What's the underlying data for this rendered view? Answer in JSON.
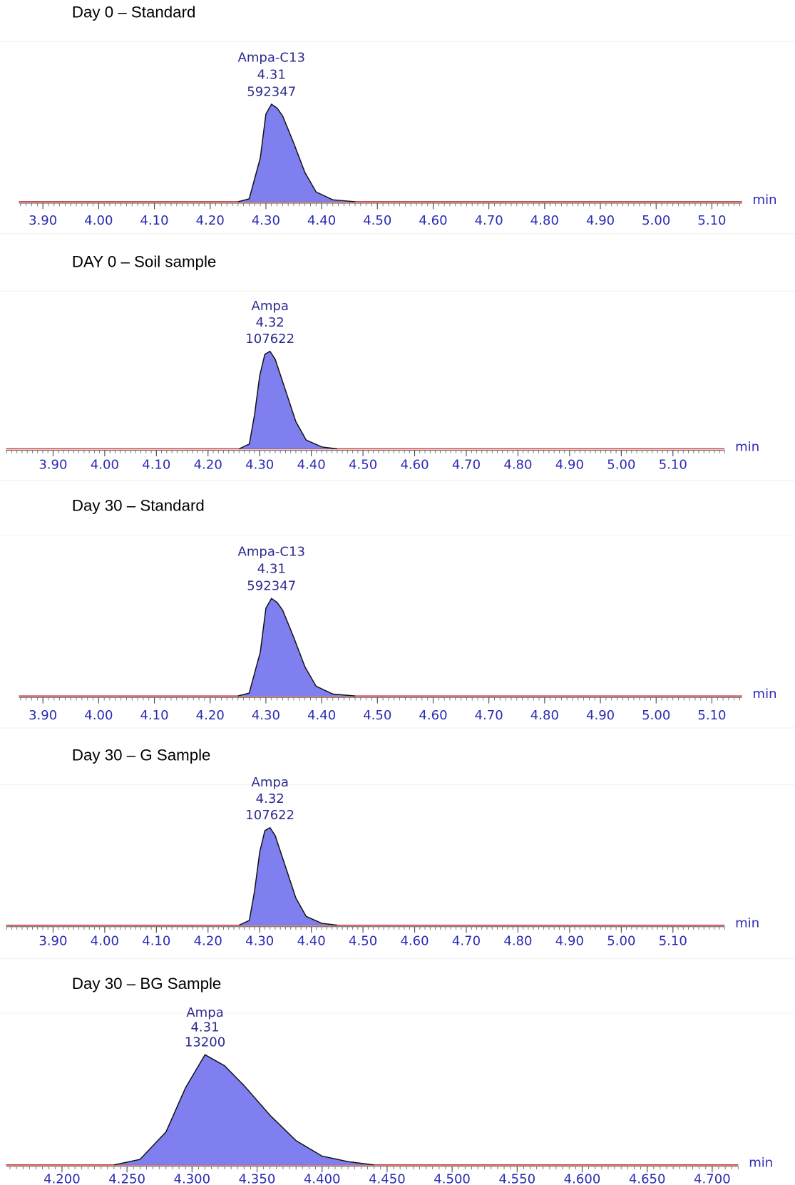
{
  "chart_data": [
    {
      "type": "chromatogram",
      "title": "Day 0 – Standard",
      "peak": {
        "name": "Ampa-C13",
        "rt": 4.31,
        "area": 592347
      },
      "x": [
        4.25,
        4.27,
        4.29,
        4.3,
        4.31,
        4.32,
        4.33,
        4.35,
        4.37,
        4.39,
        4.42,
        4.46
      ],
      "values": [
        0,
        3,
        45,
        90,
        100,
        96,
        88,
        60,
        30,
        10,
        2,
        0
      ],
      "color": "#7f7ff0",
      "x_unit": "min",
      "xlim": [
        3.857,
        5.154
      ],
      "xticks": [
        {
          "value": 3.9,
          "label": "3.90"
        },
        {
          "value": 4,
          "label": "4.00"
        },
        {
          "value": 4.1,
          "label": "4.10"
        },
        {
          "value": 4.2,
          "label": "4.20"
        },
        {
          "value": 4.3,
          "label": "4.30"
        },
        {
          "value": 4.4,
          "label": "4.40"
        },
        {
          "value": 4.5,
          "label": "4.50"
        },
        {
          "value": 4.6,
          "label": "4.60"
        },
        {
          "value": 4.7,
          "label": "4.70"
        },
        {
          "value": 4.8,
          "label": "4.80"
        },
        {
          "value": 4.9,
          "label": "4.90"
        },
        {
          "value": 5,
          "label": "5.00"
        },
        {
          "value": 5.1,
          "label": "5.10"
        }
      ]
    },
    {
      "type": "chromatogram",
      "title": "DAY 0 – Soil sample",
      "peak": {
        "name": "Ampa",
        "rt": 4.32,
        "area": 107622
      },
      "x": [
        4.26,
        4.28,
        4.29,
        4.3,
        4.31,
        4.32,
        4.33,
        4.35,
        4.37,
        4.39,
        4.42,
        4.45
      ],
      "values": [
        0,
        5,
        35,
        75,
        97,
        100,
        92,
        60,
        28,
        9,
        2,
        0
      ],
      "color": "#7f7ff0",
      "x_unit": "min",
      "xlim": [
        3.809,
        5.2
      ],
      "xticks": [
        {
          "value": 3.9,
          "label": "3.90"
        },
        {
          "value": 4,
          "label": "4.00"
        },
        {
          "value": 4.1,
          "label": "4.10"
        },
        {
          "value": 4.2,
          "label": "4.20"
        },
        {
          "value": 4.3,
          "label": "4.30"
        },
        {
          "value": 4.4,
          "label": "4.40"
        },
        {
          "value": 4.5,
          "label": "4.50"
        },
        {
          "value": 4.6,
          "label": "4.60"
        },
        {
          "value": 4.7,
          "label": "4.70"
        },
        {
          "value": 4.8,
          "label": "4.80"
        },
        {
          "value": 4.9,
          "label": "4.90"
        },
        {
          "value": 5,
          "label": "5.00"
        },
        {
          "value": 5.1,
          "label": "5.10"
        }
      ]
    },
    {
      "type": "chromatogram",
      "title": "Day 30 – Standard",
      "peak": {
        "name": "Ampa-C13",
        "rt": 4.31,
        "area": 592347
      },
      "x": [
        4.25,
        4.27,
        4.29,
        4.3,
        4.31,
        4.32,
        4.33,
        4.35,
        4.37,
        4.39,
        4.42,
        4.46
      ],
      "values": [
        0,
        3,
        45,
        90,
        100,
        96,
        88,
        60,
        30,
        10,
        2,
        0
      ],
      "color": "#7f7ff0",
      "x_unit": "min",
      "xlim": [
        3.857,
        5.154
      ],
      "xticks": [
        {
          "value": 3.9,
          "label": "3.90"
        },
        {
          "value": 4,
          "label": "4.00"
        },
        {
          "value": 4.1,
          "label": "4.10"
        },
        {
          "value": 4.2,
          "label": "4.20"
        },
        {
          "value": 4.3,
          "label": "4.30"
        },
        {
          "value": 4.4,
          "label": "4.40"
        },
        {
          "value": 4.5,
          "label": "4.50"
        },
        {
          "value": 4.6,
          "label": "4.60"
        },
        {
          "value": 4.7,
          "label": "4.70"
        },
        {
          "value": 4.8,
          "label": "4.80"
        },
        {
          "value": 4.9,
          "label": "4.90"
        },
        {
          "value": 5,
          "label": "5.00"
        },
        {
          "value": 5.1,
          "label": "5.10"
        }
      ]
    },
    {
      "type": "chromatogram",
      "title": "Day 30 – G Sample",
      "peak": {
        "name": "Ampa",
        "rt": 4.32,
        "area": 107622
      },
      "x": [
        4.26,
        4.28,
        4.29,
        4.3,
        4.31,
        4.32,
        4.33,
        4.35,
        4.37,
        4.39,
        4.42,
        4.45
      ],
      "values": [
        0,
        5,
        35,
        75,
        97,
        100,
        92,
        60,
        28,
        9,
        2,
        0
      ],
      "color": "#7f7ff0",
      "x_unit": "min",
      "xlim": [
        3.809,
        5.2
      ],
      "xticks": [
        {
          "value": 3.9,
          "label": "3.90"
        },
        {
          "value": 4,
          "label": "4.00"
        },
        {
          "value": 4.1,
          "label": "4.10"
        },
        {
          "value": 4.2,
          "label": "4.20"
        },
        {
          "value": 4.3,
          "label": "4.30"
        },
        {
          "value": 4.4,
          "label": "4.40"
        },
        {
          "value": 4.5,
          "label": "4.50"
        },
        {
          "value": 4.6,
          "label": "4.60"
        },
        {
          "value": 4.7,
          "label": "4.70"
        },
        {
          "value": 4.8,
          "label": "4.80"
        },
        {
          "value": 4.9,
          "label": "4.90"
        },
        {
          "value": 5,
          "label": "5.00"
        },
        {
          "value": 5.1,
          "label": "5.10"
        }
      ]
    },
    {
      "type": "chromatogram",
      "title": "Day 30 – BG Sample",
      "peak": {
        "name": "Ampa",
        "rt": 4.31,
        "area": 13200
      },
      "x": [
        4.24,
        4.26,
        4.28,
        4.295,
        4.31,
        4.325,
        4.34,
        4.36,
        4.38,
        4.4,
        4.42,
        4.44
      ],
      "values": [
        0,
        5,
        30,
        70,
        100,
        90,
        72,
        45,
        22,
        8,
        3,
        0
      ],
      "color": "#7f7ff0",
      "x_unit": "min",
      "xlim": [
        4.157,
        4.72
      ],
      "xticks": [
        {
          "value": 4.2,
          "label": "4.200"
        },
        {
          "value": 4.25,
          "label": "4.250"
        },
        {
          "value": 4.3,
          "label": "4.300"
        },
        {
          "value": 4.35,
          "label": "4.350"
        },
        {
          "value": 4.4,
          "label": "4.400"
        },
        {
          "value": 4.45,
          "label": "4.450"
        },
        {
          "value": 4.5,
          "label": "4.500"
        },
        {
          "value": 4.55,
          "label": "4.550"
        },
        {
          "value": 4.6,
          "label": "4.600"
        },
        {
          "value": 4.65,
          "label": "4.650"
        },
        {
          "value": 4.7,
          "label": "4.700"
        }
      ]
    }
  ]
}
